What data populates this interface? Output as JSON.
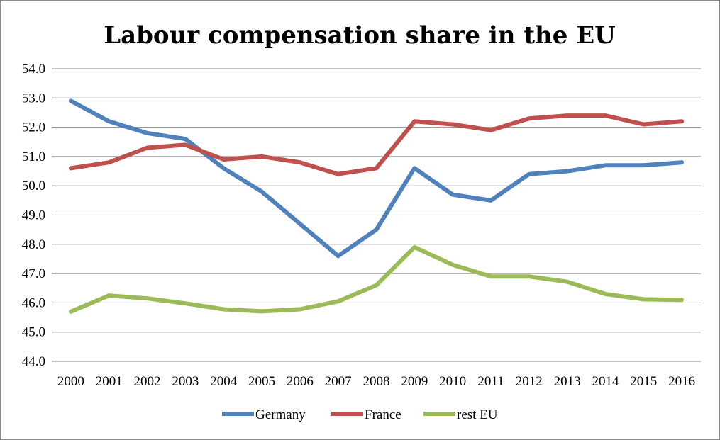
{
  "chart_data": {
    "type": "line",
    "title": "Labour compensation share in the EU",
    "xlabel": "",
    "ylabel": "",
    "categories": [
      "2000",
      "2001",
      "2002",
      "2003",
      "2004",
      "2005",
      "2006",
      "2007",
      "2008",
      "2009",
      "2010",
      "2011",
      "2012",
      "2013",
      "2014",
      "2015",
      "2016"
    ],
    "ylim": [
      44.0,
      54.0
    ],
    "yticks": [
      "44.0",
      "45.0",
      "46.0",
      "47.0",
      "48.0",
      "49.0",
      "50.0",
      "51.0",
      "52.0",
      "53.0",
      "54.0"
    ],
    "grid": true,
    "legend_position": "bottom",
    "series": [
      {
        "name": "Germany",
        "color": "#4f81bd",
        "values": [
          52.9,
          52.2,
          51.8,
          51.6,
          50.6,
          49.8,
          48.7,
          47.6,
          48.5,
          50.6,
          49.7,
          49.5,
          50.4,
          50.5,
          50.7,
          50.7,
          50.8
        ]
      },
      {
        "name": "France",
        "color": "#c0504d",
        "values": [
          50.6,
          50.8,
          51.3,
          51.4,
          50.9,
          51.0,
          50.8,
          50.4,
          50.6,
          52.2,
          52.1,
          51.9,
          52.3,
          52.4,
          52.4,
          52.1,
          52.2
        ]
      },
      {
        "name": "rest EU",
        "color": "#9bbb59",
        "values": [
          45.7,
          46.25,
          46.15,
          45.98,
          45.78,
          45.71,
          45.78,
          46.05,
          46.6,
          47.9,
          47.3,
          46.9,
          46.9,
          46.72,
          46.3,
          46.12,
          46.1
        ]
      }
    ]
  }
}
